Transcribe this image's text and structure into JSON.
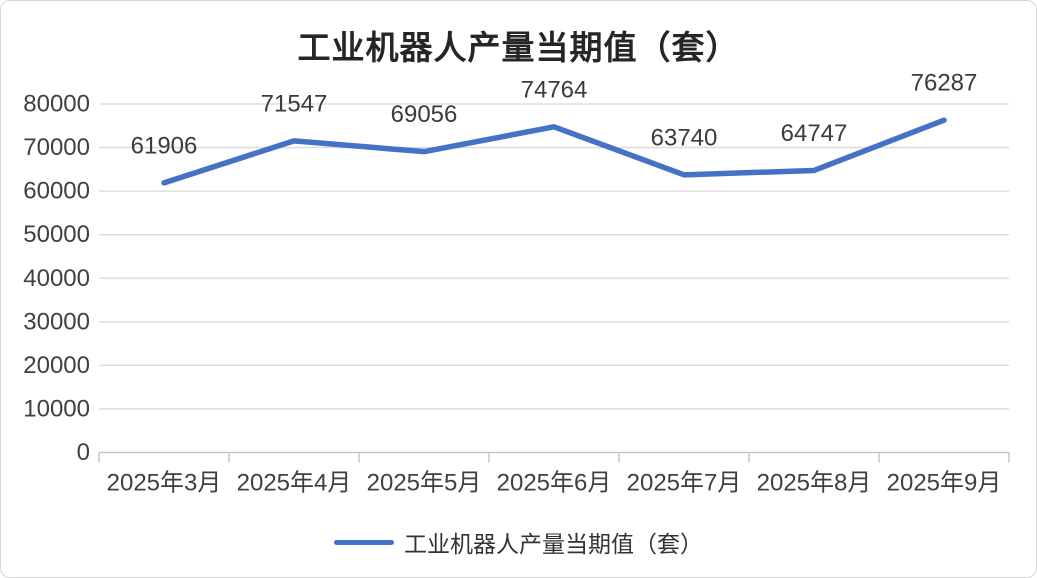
{
  "page": {
    "background": "#ffffff",
    "border_color": "#d6d6d6"
  },
  "colors": {
    "series_line": "#4472c4",
    "gridline": "#d9d9d9",
    "axis_line": "#bfbfbf",
    "tick_label_text": "#404040",
    "data_label_text": "#3b3b3b",
    "title_text": "#262626"
  },
  "chart_data": {
    "type": "line",
    "title": "工业机器人产量当期值（套）",
    "categories": [
      "2025年3月",
      "2025年4月",
      "2025年5月",
      "2025年6月",
      "2025年7月",
      "2025年8月",
      "2025年9月"
    ],
    "series": [
      {
        "name": "工业机器人产量当期值（套）",
        "values": [
          61906,
          71547,
          69056,
          74764,
          63740,
          64747,
          76287
        ],
        "color": "#4472c4"
      }
    ],
    "data_labels_shown": true,
    "ylim": [
      0,
      80000
    ],
    "ytick_interval": 10000,
    "ytick_labels": [
      "0",
      "10000",
      "20000",
      "30000",
      "40000",
      "50000",
      "60000",
      "70000",
      "80000"
    ],
    "grid": "horizontal",
    "legend_position": "bottom",
    "xlabel": "",
    "ylabel": ""
  }
}
